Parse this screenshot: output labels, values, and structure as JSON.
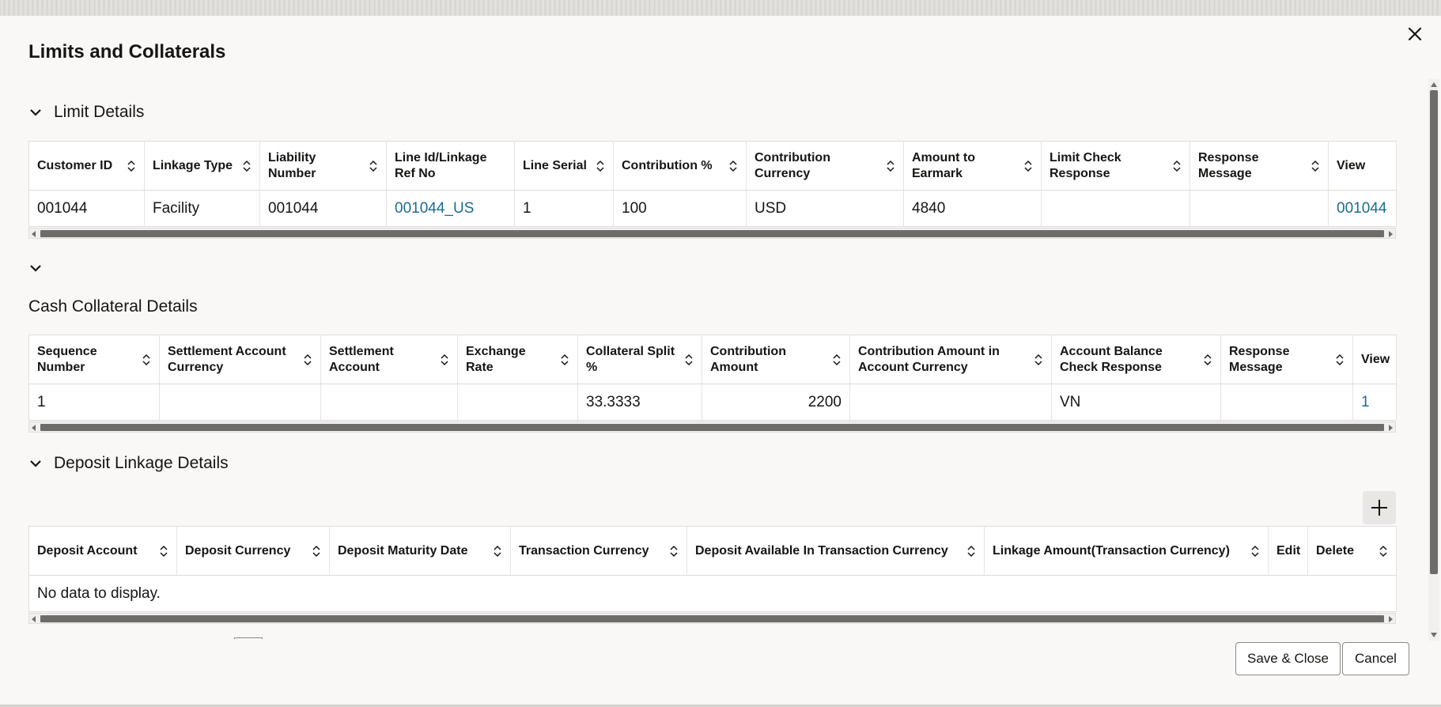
{
  "dialog": {
    "title": "Limits and Collaterals",
    "close_icon": "close-icon",
    "accent_link_color": "#1b6c8f"
  },
  "limit_details": {
    "label": "Limit Details",
    "columns": [
      "Customer ID",
      "Linkage Type",
      "Liability Number",
      "Line Id/Linkage Ref No",
      "Line Serial",
      "Contribution %",
      "Contribution Currency",
      "Amount to Earmark",
      "Limit Check Response",
      "Response Message",
      "View"
    ],
    "rows": [
      [
        "001044",
        "Facility",
        "001044",
        "001044_US",
        "1",
        "100",
        "USD",
        "4840",
        "",
        "",
        "001044"
      ]
    ]
  },
  "cash_collateral": {
    "label": "Cash Collateral Details",
    "columns": [
      "Sequence Number",
      "Settlement Account Currency",
      "Settlement Account",
      "Exchange Rate",
      "Collateral Split %",
      "Contribution Amount",
      "Contribution Amount in Account Currency",
      "Account Balance Check Response",
      "Response Message",
      "View"
    ],
    "rows": [
      [
        "1",
        "",
        "",
        "",
        "33.3333",
        "2200",
        "",
        "VN",
        "",
        "1"
      ]
    ]
  },
  "deposit_linkage": {
    "label": "Deposit Linkage Details",
    "add_icon": "plus-icon",
    "columns": [
      "Deposit Account",
      "Deposit Currency",
      "Deposit Maturity Date",
      "Transaction Currency",
      "Deposit Available In Transaction Currency",
      "Linkage Amount(Transaction Currency)",
      "Edit",
      "Delete"
    ],
    "empty_message": "No data to display."
  },
  "footer": {
    "save_close_label": "Save & Close",
    "cancel_label": "Cancel"
  }
}
